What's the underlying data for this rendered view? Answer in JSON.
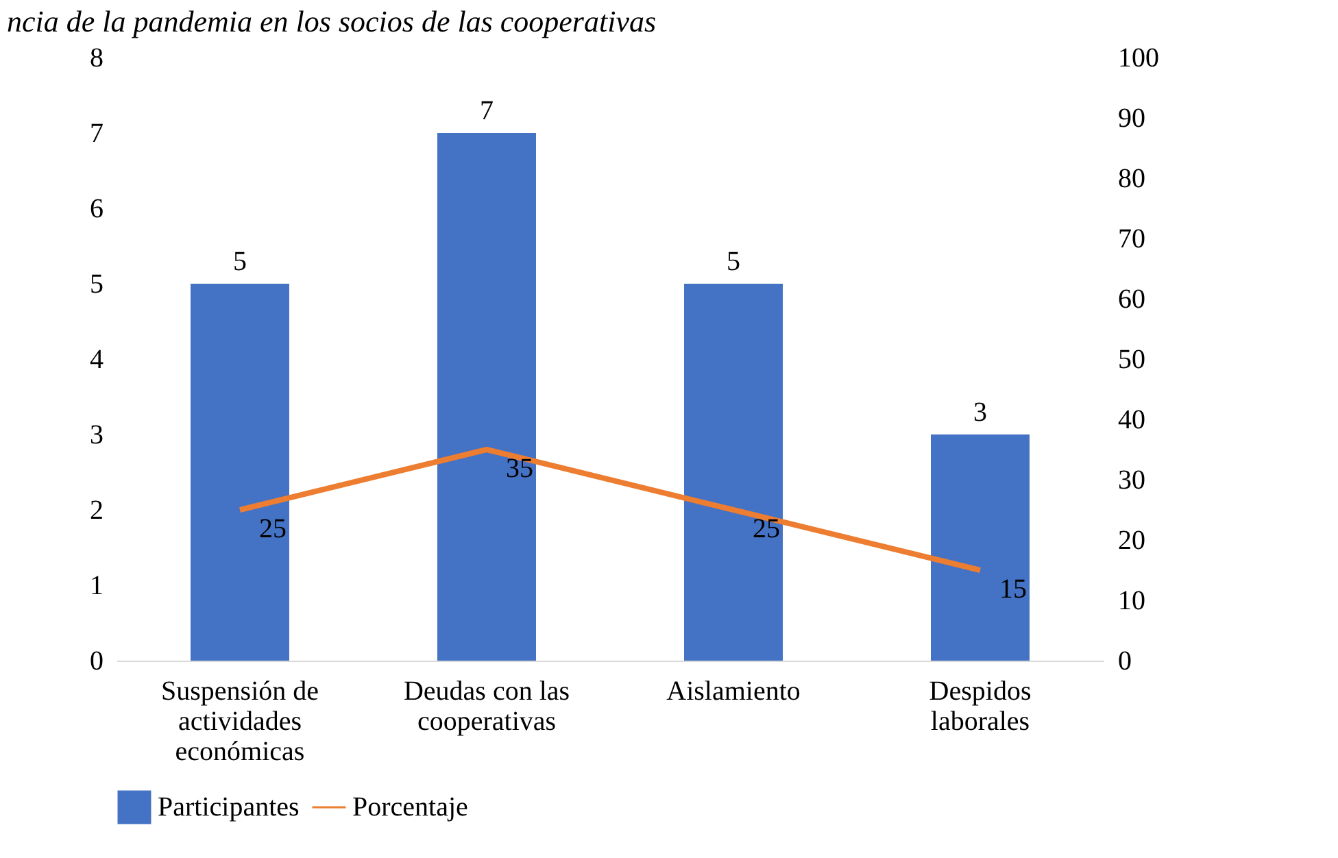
{
  "chart_data": {
    "type": "bar",
    "title": "ncia de la pandemia en los socios de las cooperativas",
    "categories": [
      "Suspensión de actividades económicas",
      "Deudas con las cooperativas",
      "Aislamiento",
      "Despidos laborales"
    ],
    "series": [
      {
        "name": "Participantes",
        "color": "#4472c4",
        "values": [
          5,
          7,
          5,
          3
        ]
      },
      {
        "name": "Porcentaje",
        "type": "line",
        "axis": "y2",
        "color": "#ed7d31",
        "values": [
          25,
          35,
          25,
          15
        ]
      }
    ],
    "ylim": [
      0,
      8
    ],
    "yticks": [
      0,
      1,
      2,
      3,
      4,
      5,
      6,
      7,
      8
    ],
    "y2lim": [
      0,
      100
    ],
    "y2ticks": [
      0,
      10,
      20,
      30,
      40,
      50,
      60,
      70,
      80,
      90,
      100
    ],
    "data_labels": true,
    "grid": false,
    "legend": "bottom",
    "marker": "none",
    "line_style": "solid"
  }
}
